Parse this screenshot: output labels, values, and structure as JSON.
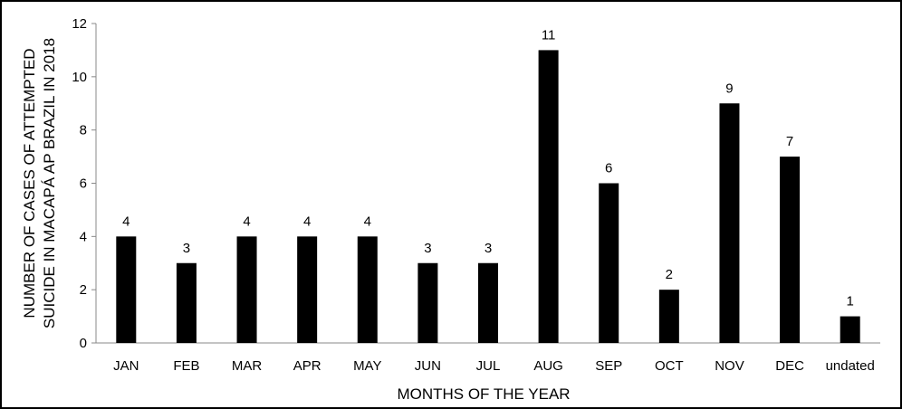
{
  "chart_data": {
    "type": "bar",
    "categories": [
      "JAN",
      "FEB",
      "MAR",
      "APR",
      "MAY",
      "JUN",
      "JUL",
      "AUG",
      "SEP",
      "OCT",
      "NOV",
      "DEC",
      "undated"
    ],
    "values": [
      4,
      3,
      4,
      4,
      4,
      3,
      3,
      11,
      6,
      2,
      9,
      7,
      1
    ],
    "data_labels": [
      "4",
      "3",
      "4",
      "4",
      "4",
      "3",
      "3",
      "11",
      "6",
      "2",
      "9",
      "7",
      "1"
    ],
    "xlabel": "MONTHS OF THE YEAR",
    "ylabel_line1": "NUMBER OF CASES OF ATTEMPTED",
    "ylabel_line2": "SUICIDE IN MACAPÁ AP BRAZIL IN 2018",
    "ylim": [
      0,
      12
    ],
    "yticks": [
      0,
      2,
      4,
      6,
      8,
      10,
      12
    ],
    "ytick_labels": [
      "0",
      "2",
      "4",
      "6",
      "8",
      "10",
      "12"
    ],
    "bar_color": "#000000",
    "grid": false,
    "legend": "none"
  }
}
